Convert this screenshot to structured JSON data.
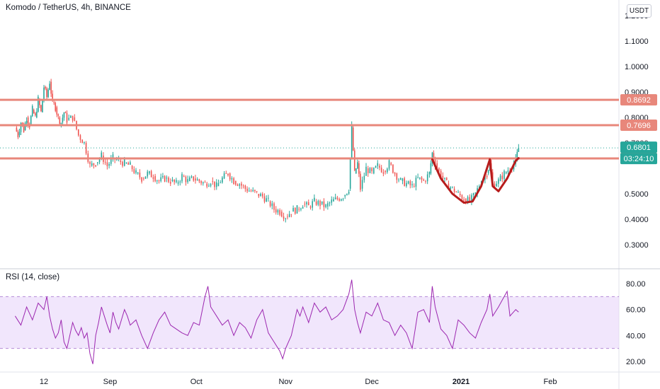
{
  "header": {
    "symbol_title": "Komodo / TetherUS, 4h, BINANCE",
    "currency_button": "USDT",
    "rsi_title": "RSI (14, close)"
  },
  "chart_data": [
    {
      "type": "candlestick",
      "title": "Komodo / TetherUS, 4h, BINANCE",
      "ylim": [
        0.2,
        1.2
      ],
      "y_ticks": [
        "1.2000",
        "1.1000",
        "1.0000",
        "0.9000",
        "0.8000",
        "0.7000",
        "0.5000",
        "0.4000",
        "0.3000"
      ],
      "x_ticks": [
        "12",
        "Sep",
        "Oct",
        "Nov",
        "Dec",
        "2021",
        "Feb"
      ],
      "x_tick_positions": [
        12,
        35,
        65,
        96,
        126,
        157,
        188
      ],
      "x_range_days": [
        0,
        205
      ],
      "series_close": [
        [
          2,
          0.76
        ],
        [
          3,
          0.73
        ],
        [
          4,
          0.78
        ],
        [
          5,
          0.75
        ],
        [
          6,
          0.8
        ],
        [
          7,
          0.77
        ],
        [
          8,
          0.83
        ],
        [
          9,
          0.8
        ],
        [
          10,
          0.87
        ],
        [
          11,
          0.82
        ],
        [
          12,
          0.92
        ],
        [
          13,
          0.88
        ],
        [
          14,
          0.94
        ],
        [
          15,
          0.86
        ],
        [
          16,
          0.84
        ],
        [
          17,
          0.8
        ],
        [
          18,
          0.78
        ],
        [
          19,
          0.82
        ],
        [
          20,
          0.79
        ],
        [
          22,
          0.8
        ],
        [
          24,
          0.73
        ],
        [
          26,
          0.7
        ],
        [
          28,
          0.61
        ],
        [
          30,
          0.62
        ],
        [
          32,
          0.65
        ],
        [
          34,
          0.61
        ],
        [
          36,
          0.64
        ],
        [
          38,
          0.63
        ],
        [
          40,
          0.62
        ],
        [
          42,
          0.61
        ],
        [
          44,
          0.58
        ],
        [
          46,
          0.56
        ],
        [
          48,
          0.58
        ],
        [
          50,
          0.57
        ],
        [
          52,
          0.55
        ],
        [
          54,
          0.56
        ],
        [
          56,
          0.55
        ],
        [
          58,
          0.54
        ],
        [
          60,
          0.57
        ],
        [
          62,
          0.55
        ],
        [
          64,
          0.56
        ],
        [
          66,
          0.55
        ],
        [
          68,
          0.54
        ],
        [
          70,
          0.55
        ],
        [
          72,
          0.53
        ],
        [
          74,
          0.56
        ],
        [
          76,
          0.58
        ],
        [
          78,
          0.55
        ],
        [
          80,
          0.54
        ],
        [
          82,
          0.52
        ],
        [
          84,
          0.51
        ],
        [
          86,
          0.5
        ],
        [
          88,
          0.49
        ],
        [
          90,
          0.47
        ],
        [
          92,
          0.44
        ],
        [
          94,
          0.43
        ],
        [
          96,
          0.41
        ],
        [
          98,
          0.43
        ],
        [
          100,
          0.44
        ],
        [
          102,
          0.46
        ],
        [
          104,
          0.45
        ],
        [
          106,
          0.47
        ],
        [
          108,
          0.46
        ],
        [
          110,
          0.45
        ],
        [
          112,
          0.47
        ],
        [
          114,
          0.48
        ],
        [
          116,
          0.49
        ],
        [
          118,
          0.52
        ],
        [
          119,
          0.76
        ],
        [
          120,
          0.58
        ],
        [
          121,
          0.62
        ],
        [
          122,
          0.52
        ],
        [
          124,
          0.6
        ],
        [
          126,
          0.58
        ],
        [
          128,
          0.61
        ],
        [
          130,
          0.59
        ],
        [
          132,
          0.62
        ],
        [
          134,
          0.58
        ],
        [
          136,
          0.55
        ],
        [
          138,
          0.54
        ],
        [
          140,
          0.53
        ],
        [
          142,
          0.56
        ],
        [
          144,
          0.55
        ],
        [
          146,
          0.58
        ],
        [
          147,
          0.66
        ],
        [
          148,
          0.62
        ],
        [
          150,
          0.57
        ],
        [
          152,
          0.54
        ],
        [
          154,
          0.52
        ],
        [
          156,
          0.5
        ],
        [
          158,
          0.48
        ],
        [
          160,
          0.47
        ],
        [
          162,
          0.5
        ],
        [
          164,
          0.55
        ],
        [
          166,
          0.58
        ],
        [
          167,
          0.62
        ],
        [
          168,
          0.54
        ],
        [
          170,
          0.55
        ],
        [
          172,
          0.58
        ],
        [
          174,
          0.6
        ],
        [
          176,
          0.63
        ],
        [
          177,
          0.68
        ]
      ],
      "horizontal_levels": [
        {
          "value": 0.8692,
          "label": "0.8692",
          "color": "#e8877b"
        },
        {
          "value": 0.7696,
          "label": "0.7696",
          "color": "#e8877b"
        },
        {
          "value": 0.639,
          "label": "0.6390",
          "color": "#e8877b"
        }
      ],
      "current_price": {
        "value": 0.6801,
        "label": "0.6801",
        "countdown": "03:24:10",
        "color": "#26a69a"
      },
      "annotation": {
        "type": "cup-and-handle drawing",
        "color": "#b71c1c"
      }
    },
    {
      "type": "line",
      "title": "RSI (14, close)",
      "ylim": [
        14,
        88
      ],
      "y_ticks": [
        "80.00",
        "60.00",
        "40.00",
        "20.00"
      ],
      "band": {
        "upper": 70,
        "lower": 30,
        "color": "#e8d5fa"
      },
      "line_color": "#9c27b0",
      "series": [
        [
          2,
          55
        ],
        [
          4,
          48
        ],
        [
          6,
          62
        ],
        [
          8,
          52
        ],
        [
          10,
          65
        ],
        [
          12,
          60
        ],
        [
          13,
          70
        ],
        [
          14,
          55
        ],
        [
          15,
          45
        ],
        [
          16,
          38
        ],
        [
          17,
          42
        ],
        [
          18,
          52
        ],
        [
          19,
          35
        ],
        [
          20,
          30
        ],
        [
          22,
          50
        ],
        [
          23,
          44
        ],
        [
          24,
          40
        ],
        [
          25,
          46
        ],
        [
          26,
          38
        ],
        [
          27,
          42
        ],
        [
          28,
          26
        ],
        [
          29,
          18
        ],
        [
          30,
          40
        ],
        [
          31,
          50
        ],
        [
          32,
          62
        ],
        [
          33,
          55
        ],
        [
          34,
          48
        ],
        [
          35,
          42
        ],
        [
          36,
          58
        ],
        [
          37,
          50
        ],
        [
          38,
          45
        ],
        [
          40,
          60
        ],
        [
          41,
          55
        ],
        [
          42,
          48
        ],
        [
          44,
          52
        ],
        [
          46,
          40
        ],
        [
          48,
          30
        ],
        [
          50,
          42
        ],
        [
          52,
          52
        ],
        [
          54,
          58
        ],
        [
          56,
          48
        ],
        [
          58,
          45
        ],
        [
          60,
          42
        ],
        [
          62,
          40
        ],
        [
          64,
          50
        ],
        [
          66,
          48
        ],
        [
          68,
          70
        ],
        [
          69,
          78
        ],
        [
          70,
          62
        ],
        [
          72,
          55
        ],
        [
          74,
          48
        ],
        [
          76,
          52
        ],
        [
          78,
          40
        ],
        [
          80,
          50
        ],
        [
          82,
          46
        ],
        [
          84,
          38
        ],
        [
          86,
          52
        ],
        [
          88,
          60
        ],
        [
          90,
          42
        ],
        [
          92,
          35
        ],
        [
          94,
          28
        ],
        [
          95,
          22
        ],
        [
          96,
          30
        ],
        [
          98,
          40
        ],
        [
          100,
          60
        ],
        [
          101,
          55
        ],
        [
          102,
          62
        ],
        [
          104,
          50
        ],
        [
          106,
          65
        ],
        [
          108,
          58
        ],
        [
          110,
          62
        ],
        [
          112,
          52
        ],
        [
          114,
          55
        ],
        [
          116,
          60
        ],
        [
          118,
          72
        ],
        [
          119,
          83
        ],
        [
          120,
          60
        ],
        [
          121,
          50
        ],
        [
          122,
          42
        ],
        [
          124,
          58
        ],
        [
          126,
          55
        ],
        [
          128,
          65
        ],
        [
          130,
          52
        ],
        [
          132,
          50
        ],
        [
          134,
          40
        ],
        [
          136,
          48
        ],
        [
          138,
          42
        ],
        [
          140,
          30
        ],
        [
          142,
          58
        ],
        [
          144,
          60
        ],
        [
          146,
          50
        ],
        [
          147,
          78
        ],
        [
          148,
          62
        ],
        [
          150,
          45
        ],
        [
          152,
          40
        ],
        [
          154,
          30
        ],
        [
          156,
          52
        ],
        [
          158,
          48
        ],
        [
          160,
          42
        ],
        [
          162,
          38
        ],
        [
          164,
          50
        ],
        [
          166,
          60
        ],
        [
          167,
          72
        ],
        [
          168,
          55
        ],
        [
          170,
          62
        ],
        [
          172,
          70
        ],
        [
          173,
          74
        ],
        [
          174,
          55
        ],
        [
          176,
          60
        ],
        [
          177,
          58
        ]
      ]
    }
  ]
}
